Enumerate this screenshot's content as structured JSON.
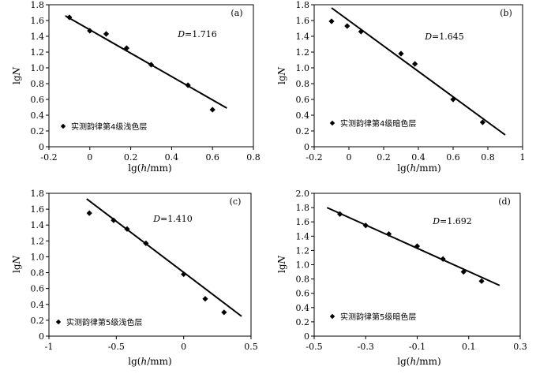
{
  "chart_data": [
    {
      "type": "scatter",
      "panel": "(a)",
      "annotation": "D=1.716",
      "xlabel": "lg(h/mm)",
      "ylabel": "lgN",
      "xlim": [
        -0.2,
        0.8
      ],
      "ylim": [
        0,
        1.8
      ],
      "x_ticks": [
        "-0.2",
        "0",
        "0.2",
        "0.4",
        "0.6",
        "0.8"
      ],
      "y_ticks": [
        "0",
        "0.2",
        "0.4",
        "0.6",
        "0.8",
        "1.0",
        "1.2",
        "1.4",
        "1.6",
        "1.8"
      ],
      "legend": "实测韵律第4级浅色层",
      "legend_position": "bottom-left",
      "points": [
        {
          "x": -0.1,
          "y": 1.64
        },
        {
          "x": 0.0,
          "y": 1.47
        },
        {
          "x": 0.08,
          "y": 1.43
        },
        {
          "x": 0.18,
          "y": 1.25
        },
        {
          "x": 0.3,
          "y": 1.04
        },
        {
          "x": 0.48,
          "y": 0.78
        },
        {
          "x": 0.6,
          "y": 0.47
        }
      ],
      "fit_line": [
        {
          "x": -0.12,
          "y": 1.66
        },
        {
          "x": 0.67,
          "y": 0.49
        }
      ]
    },
    {
      "type": "scatter",
      "panel": "(b)",
      "annotation": "D=1.645",
      "xlabel": "lg(h/mm)",
      "ylabel": "lgN",
      "xlim": [
        -0.2,
        1.0
      ],
      "ylim": [
        0,
        1.8
      ],
      "x_ticks": [
        "-0.2",
        "0",
        "0.2",
        "0.4",
        "0.6",
        "0.8",
        "1"
      ],
      "y_ticks": [
        "0",
        "0.2",
        "0.4",
        "0.6",
        "0.8",
        "1.0",
        "1.2",
        "1.4",
        "1.6",
        "1.8"
      ],
      "legend": "实测韵律第4级暗色层",
      "legend_position": "bottom-left",
      "points": [
        {
          "x": -0.1,
          "y": 1.59
        },
        {
          "x": -0.01,
          "y": 1.53
        },
        {
          "x": 0.07,
          "y": 1.46
        },
        {
          "x": 0.3,
          "y": 1.18
        },
        {
          "x": 0.38,
          "y": 1.05
        },
        {
          "x": 0.6,
          "y": 0.6
        },
        {
          "x": 0.77,
          "y": 0.31
        }
      ],
      "fit_line": [
        {
          "x": -0.1,
          "y": 1.76
        },
        {
          "x": 0.9,
          "y": 0.15
        }
      ]
    },
    {
      "type": "scatter",
      "panel": "(c)",
      "annotation": "D=1.410",
      "xlabel": "lg(h/mm)",
      "ylabel": "lgN",
      "xlim": [
        -1.0,
        0.5
      ],
      "ylim": [
        0,
        1.8
      ],
      "x_ticks": [
        "-1",
        "-0.5",
        "0",
        "0.5"
      ],
      "y_ticks": [
        "0",
        "0.2",
        "0.4",
        "0.6",
        "0.8",
        "1.0",
        "1.2",
        "1.4",
        "1.6",
        "1.8"
      ],
      "legend": "实测韵律第5级浅色层",
      "legend_position": "bottom-left",
      "points": [
        {
          "x": -0.7,
          "y": 1.55
        },
        {
          "x": -0.52,
          "y": 1.46
        },
        {
          "x": -0.42,
          "y": 1.35
        },
        {
          "x": -0.28,
          "y": 1.17
        },
        {
          "x": 0.0,
          "y": 0.78
        },
        {
          "x": 0.16,
          "y": 0.47
        },
        {
          "x": 0.3,
          "y": 0.3
        }
      ],
      "fit_line": [
        {
          "x": -0.72,
          "y": 1.73
        },
        {
          "x": 0.43,
          "y": 0.25
        }
      ]
    },
    {
      "type": "scatter",
      "panel": "(d)",
      "annotation": "D=1.692",
      "xlabel": "lg(h/mm)",
      "ylabel": "lgN",
      "xlim": [
        -0.5,
        0.3
      ],
      "ylim": [
        0,
        2.0
      ],
      "x_ticks": [
        "-0.5",
        "-0.3",
        "-0.1",
        "0.1",
        "0.3"
      ],
      "y_ticks": [
        "0",
        "0.2",
        "0.4",
        "0.6",
        "0.8",
        "1.0",
        "1.2",
        "1.4",
        "1.6",
        "1.8",
        "2.0"
      ],
      "legend": "实测韵律第5级暗色层",
      "legend_position": "bottom-left",
      "points": [
        {
          "x": -0.4,
          "y": 1.71
        },
        {
          "x": -0.3,
          "y": 1.55
        },
        {
          "x": -0.21,
          "y": 1.43
        },
        {
          "x": -0.1,
          "y": 1.26
        },
        {
          "x": 0.0,
          "y": 1.08
        },
        {
          "x": 0.08,
          "y": 0.9
        },
        {
          "x": 0.15,
          "y": 0.77
        }
      ],
      "fit_line": [
        {
          "x": -0.45,
          "y": 1.8
        },
        {
          "x": 0.22,
          "y": 0.71
        }
      ]
    }
  ]
}
